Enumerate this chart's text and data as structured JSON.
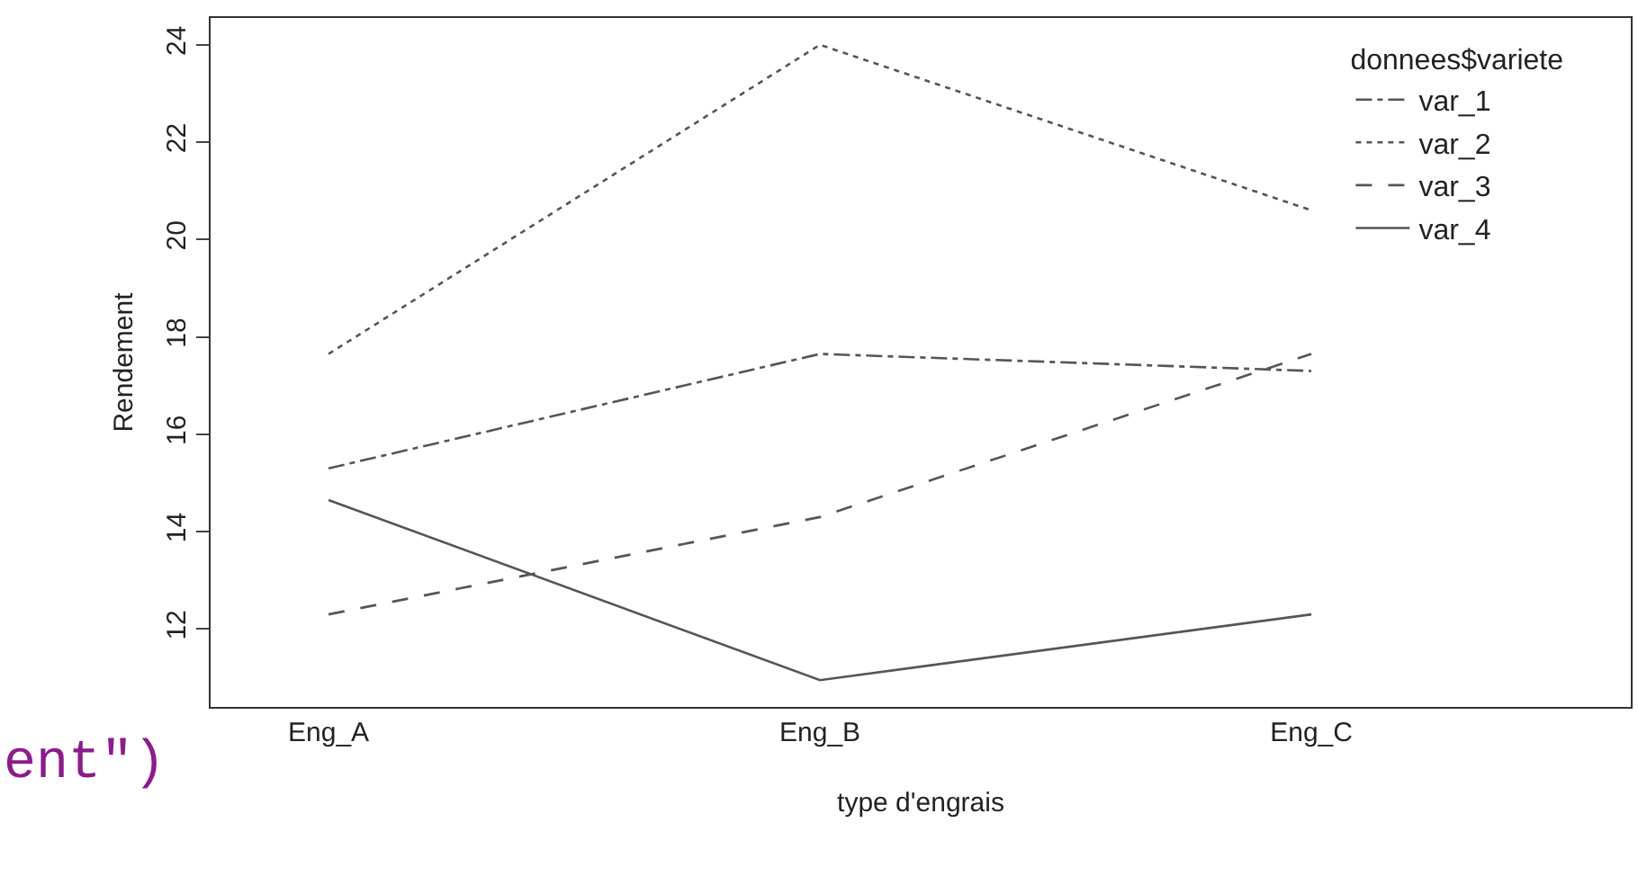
{
  "chart_data": {
    "type": "line",
    "xlabel": "type d'engrais",
    "ylabel": "Rendement",
    "legend_title": "donnees$variete",
    "categories": [
      "Eng_A",
      "Eng_B",
      "Eng_C"
    ],
    "series": [
      {
        "name": "var_1",
        "color": "#555555",
        "line_style": "dashdot",
        "values": [
          15.3,
          17.65,
          17.3
        ]
      },
      {
        "name": "var_2",
        "color": "#555555",
        "line_style": "dotted",
        "values": [
          17.65,
          24.0,
          20.6
        ]
      },
      {
        "name": "var_3",
        "color": "#555555",
        "line_style": "dashed",
        "values": [
          12.3,
          14.3,
          17.65
        ]
      },
      {
        "name": "var_4",
        "color": "#555555",
        "line_style": "solid",
        "values": [
          14.65,
          10.95,
          12.3
        ]
      }
    ],
    "ylim": [
      10.4,
      24.55
    ],
    "yticks": [
      12,
      14,
      16,
      18,
      20,
      22,
      24
    ],
    "legend": "top right",
    "marker": "none",
    "annotations": [
      "ent\")"
    ]
  }
}
